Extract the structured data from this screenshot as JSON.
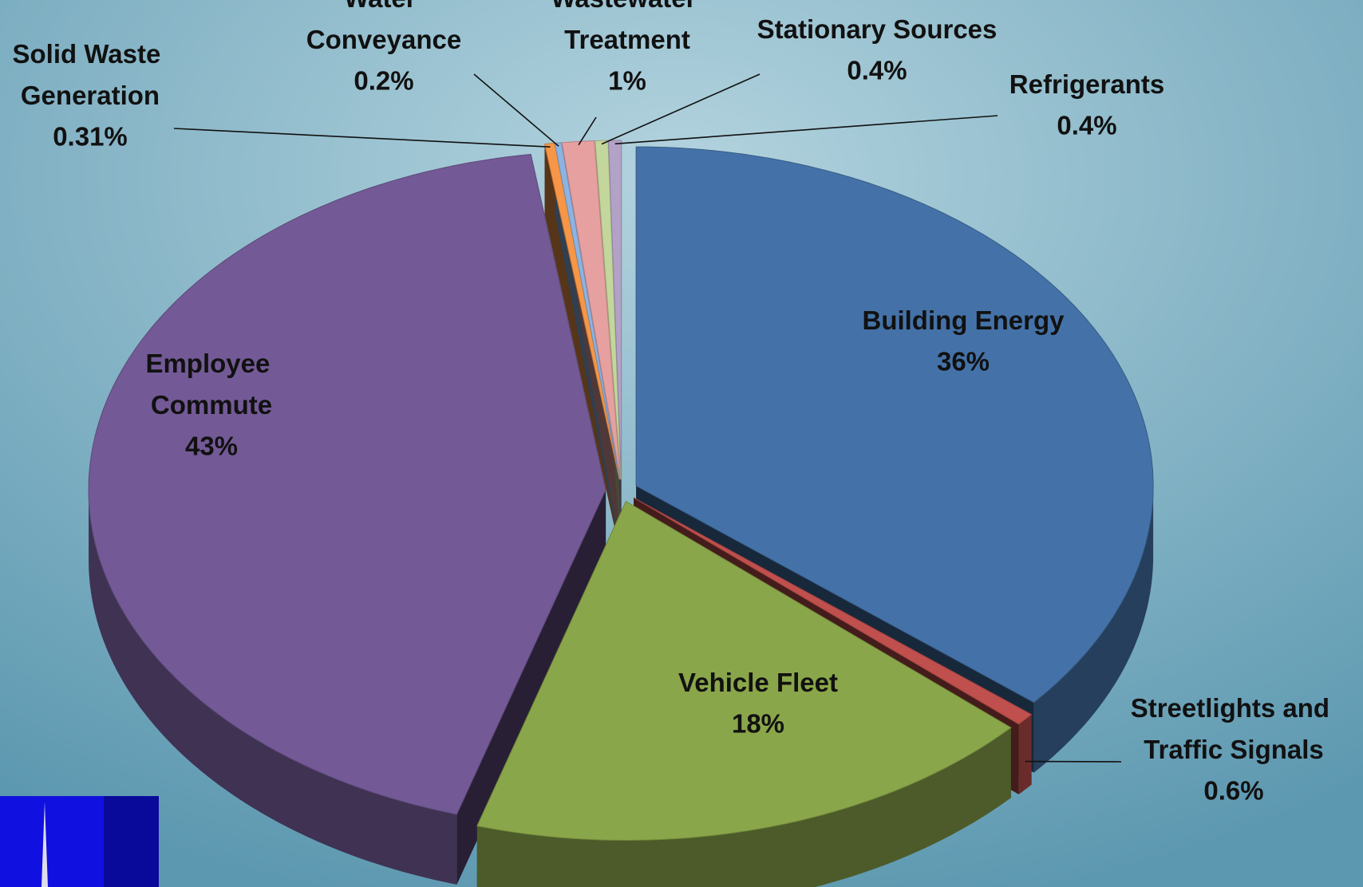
{
  "chart_data": {
    "type": "pie",
    "categories": [
      "Building Energy",
      "Streetlights and Traffic Signals",
      "Vehicle Fleet",
      "Employee Commute",
      "Solid Waste Generation",
      "Water Conveyance",
      "Wastewater Treatment",
      "Stationary Sources",
      "Refrigerants"
    ],
    "values": [
      36,
      0.6,
      18,
      43,
      0.31,
      0.2,
      1,
      0.4,
      0.4
    ],
    "value_labels": [
      "36%",
      "0.6%",
      "18%",
      "43%",
      "0.31%",
      "0.2%",
      "1%",
      "0.4%",
      "0.4%"
    ],
    "colors": [
      "#4472a8",
      "#c0504d",
      "#8aa64a",
      "#735a96",
      "#f79646",
      "#8db3e2",
      "#e6a0a0",
      "#c3d69b",
      "#b3a2c7"
    ]
  }
}
